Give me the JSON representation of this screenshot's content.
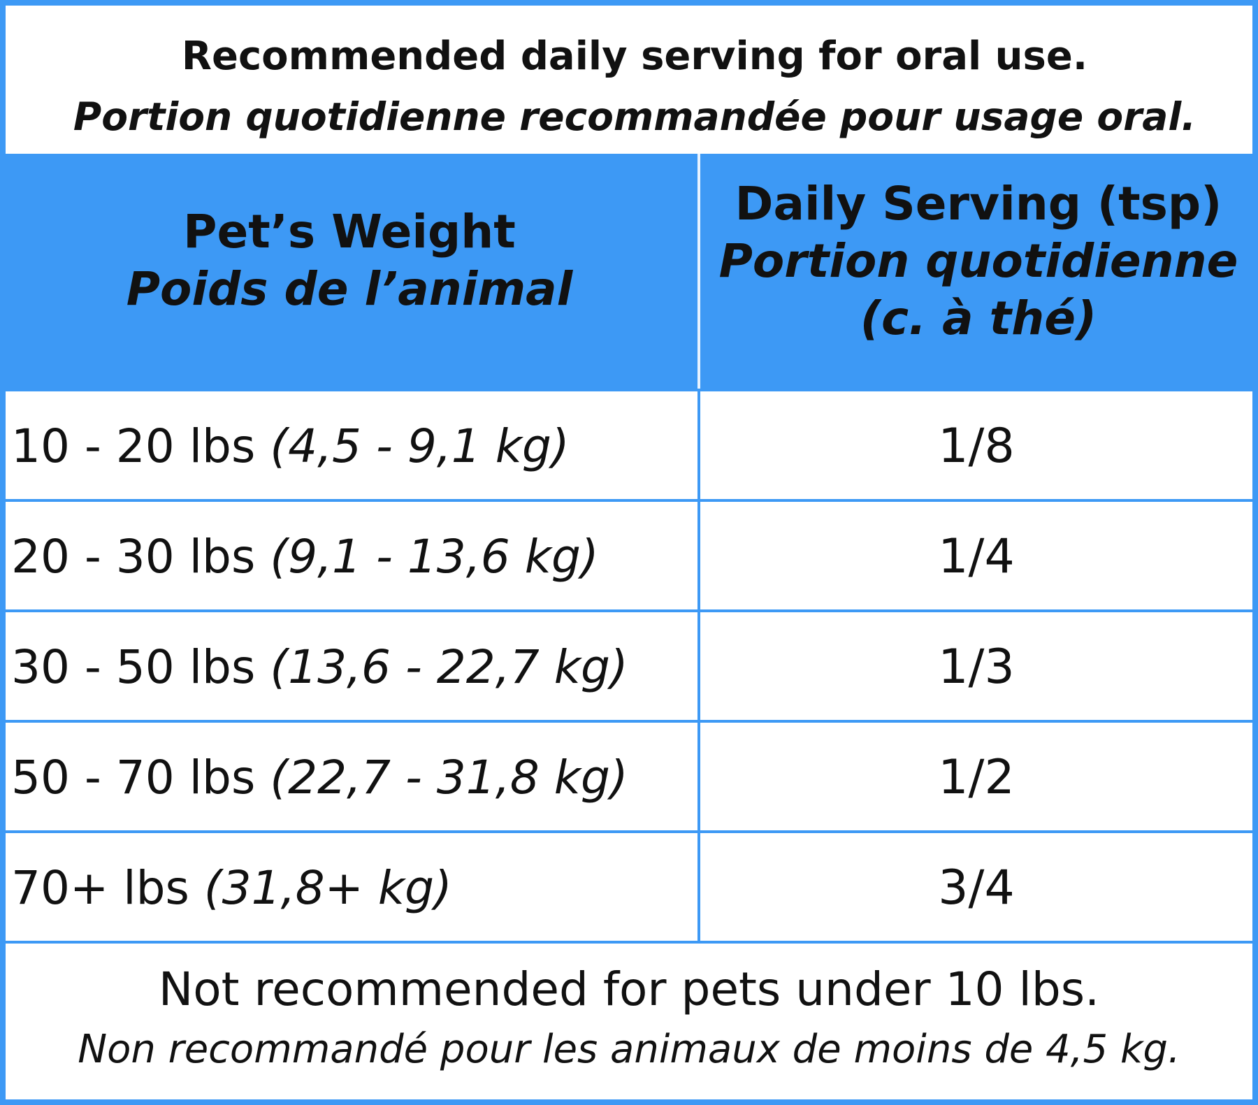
{
  "title": {
    "english": "Recommended daily serving for oral use.",
    "french": "Portion quotidienne recommandée pour usage oral."
  },
  "table": {
    "header": {
      "weight": {
        "english": "Pet’s Weight",
        "french": "Poids de l’animal"
      },
      "serving": {
        "english": "Daily Serving (tsp)",
        "french_line1": "Portion quotidienne",
        "french_line2": "(c. à thé)"
      }
    },
    "rows": [
      {
        "imperial": "10 - 20 lbs",
        "metric": "(4,5 - 9,1 kg)",
        "serving": "1/8"
      },
      {
        "imperial": "20 - 30 lbs",
        "metric": "(9,1 - 13,6 kg)",
        "serving": "1/4"
      },
      {
        "imperial": "30 - 50 lbs",
        "metric": "(13,6 - 22,7 kg)",
        "serving": "1/3"
      },
      {
        "imperial": "50 - 70 lbs",
        "metric": "(22,7 - 31,8 kg)",
        "serving": "1/2"
      },
      {
        "imperial": "70+ lbs",
        "metric": "(31,8+ kg)",
        "serving": "3/4"
      }
    ]
  },
  "footer": {
    "english": "Not recommended for pets under 10 lbs.",
    "french": "Non recommandé pour les animaux de moins de 4,5 kg."
  },
  "colors": {
    "accent_blue": "#3d99f5",
    "text": "#111111",
    "background": "#ffffff"
  }
}
